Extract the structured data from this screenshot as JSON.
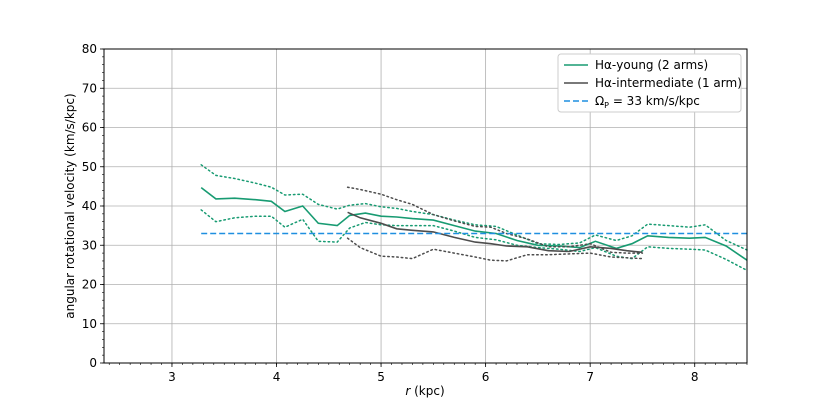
{
  "chart_data": {
    "type": "line",
    "xlabel_italic": "r",
    "xlabel_rest": " (kpc)",
    "ylabel": "angular rotational velocity (km/s/kpc)",
    "xlim": [
      2.35,
      8.5
    ],
    "ylim": [
      0,
      80
    ],
    "xticks": [
      3,
      4,
      5,
      6,
      7,
      8
    ],
    "yticks": [
      0,
      10,
      20,
      30,
      40,
      50,
      60,
      70,
      80
    ],
    "grid": true,
    "legend_position": "upper-right",
    "colors": {
      "young": "#189b72",
      "intermediate": "#4d4d4d",
      "pattern": "#1f8fe0"
    },
    "series": [
      {
        "name": "Hα-young (2 arms)",
        "style": "solid",
        "color_key": "young",
        "x": [
          3.28,
          3.42,
          3.6,
          3.8,
          3.95,
          4.08,
          4.25,
          4.4,
          4.58,
          4.7,
          4.85,
          5.0,
          5.15,
          5.3,
          5.5,
          5.7,
          5.9,
          6.1,
          6.3,
          6.5,
          6.7,
          6.9,
          7.05,
          7.25,
          7.4,
          7.55,
          7.75,
          7.95,
          8.1,
          8.3,
          8.5
        ],
        "y": [
          44.7,
          41.8,
          42.0,
          41.6,
          41.2,
          38.6,
          40.0,
          35.6,
          35.0,
          37.6,
          38.2,
          37.4,
          37.2,
          36.8,
          36.4,
          35.0,
          33.6,
          33.0,
          31.2,
          30.0,
          29.8,
          29.4,
          31.0,
          29.2,
          30.4,
          32.4,
          32.0,
          31.8,
          32.0,
          29.8,
          26.2
        ]
      },
      {
        "name": "Hα-young upper bound",
        "style": "dotted",
        "color_key": "young",
        "x": [
          3.28,
          3.42,
          3.6,
          3.8,
          3.95,
          4.08,
          4.25,
          4.4,
          4.58,
          4.7,
          4.85,
          5.0,
          5.15,
          5.3,
          5.5,
          5.7,
          5.9,
          6.1,
          6.3,
          6.5,
          6.7,
          6.9,
          7.05,
          7.25,
          7.4,
          7.55,
          7.75,
          7.95,
          8.1,
          8.3,
          8.5
        ],
        "y": [
          50.5,
          47.8,
          47.0,
          45.8,
          44.8,
          42.8,
          43.0,
          40.4,
          39.2,
          40.2,
          40.6,
          39.8,
          39.4,
          38.6,
          37.8,
          36.4,
          35.2,
          34.8,
          32.6,
          30.4,
          30.2,
          30.6,
          32.6,
          31.2,
          32.4,
          35.4,
          35.0,
          34.6,
          35.2,
          31.2,
          28.8
        ]
      },
      {
        "name": "Hα-young lower bound",
        "style": "dotted",
        "color_key": "young",
        "x": [
          3.28,
          3.42,
          3.6,
          3.8,
          3.95,
          4.08,
          4.25,
          4.4,
          4.58,
          4.7,
          4.85,
          5.0,
          5.15,
          5.3,
          5.5,
          5.7,
          5.9,
          6.1,
          6.3,
          6.5,
          6.7,
          6.9,
          7.05,
          7.25,
          7.4,
          7.55,
          7.75,
          7.95,
          8.1,
          8.3,
          8.5
        ],
        "y": [
          39.0,
          36.0,
          37.0,
          37.4,
          37.4,
          34.6,
          36.6,
          31.0,
          30.8,
          34.4,
          35.8,
          35.2,
          35.0,
          35.0,
          35.0,
          33.6,
          32.0,
          31.4,
          30.0,
          29.4,
          29.0,
          28.4,
          29.4,
          27.2,
          26.6,
          29.6,
          29.2,
          29.0,
          28.8,
          26.4,
          23.6
        ]
      },
      {
        "name": "Hα-intermediate (1 arm)",
        "style": "solid",
        "color_key": "intermediate",
        "x": [
          4.68,
          4.8,
          5.0,
          5.15,
          5.3,
          5.5,
          5.7,
          5.9,
          6.05,
          6.2,
          6.4,
          6.6,
          6.8,
          7.0,
          7.2,
          7.35,
          7.5
        ],
        "y": [
          38.4,
          37.0,
          35.6,
          34.2,
          33.8,
          33.4,
          32.0,
          30.8,
          30.4,
          29.8,
          29.6,
          28.6,
          28.4,
          29.6,
          29.2,
          28.6,
          28.2
        ]
      },
      {
        "name": "Hα-intermediate upper bound",
        "style": "dotted",
        "color_key": "intermediate",
        "x": [
          4.68,
          4.8,
          5.0,
          5.15,
          5.3,
          5.5,
          5.7,
          5.9,
          6.05,
          6.2,
          6.4,
          6.6,
          6.8,
          7.0,
          7.2,
          7.35,
          7.5
        ],
        "y": [
          44.8,
          44.2,
          43.0,
          41.6,
          40.4,
          37.8,
          36.2,
          34.8,
          34.6,
          33.0,
          31.6,
          29.6,
          29.6,
          30.4,
          28.2,
          28.0,
          28.0
        ]
      },
      {
        "name": "Hα-intermediate lower bound",
        "style": "dotted",
        "color_key": "intermediate",
        "x": [
          4.68,
          4.8,
          5.0,
          5.15,
          5.3,
          5.5,
          5.7,
          5.9,
          6.05,
          6.2,
          6.4,
          6.6,
          6.8,
          7.0,
          7.2,
          7.35,
          7.5
        ],
        "y": [
          31.8,
          29.4,
          27.2,
          27.0,
          26.6,
          29.0,
          28.0,
          27.0,
          26.2,
          26.0,
          27.6,
          27.6,
          27.8,
          28.0,
          27.0,
          26.8,
          26.6
        ]
      },
      {
        "name": "ΩP = 33 km/s/kpc",
        "style": "dashed",
        "color_key": "pattern",
        "x": [
          3.28,
          8.5
        ],
        "y": [
          33,
          33
        ]
      }
    ],
    "legend": [
      {
        "label_main": "Hα-young (2 arms)",
        "color_key": "young",
        "style": "solid"
      },
      {
        "label_main": "Hα-intermediate (1 arm)",
        "color_key": "intermediate",
        "style": "solid"
      },
      {
        "label_main": "Ω",
        "label_sub": "P",
        "label_tail": " = 33 km/s/kpc",
        "color_key": "pattern",
        "style": "dashed"
      }
    ]
  }
}
